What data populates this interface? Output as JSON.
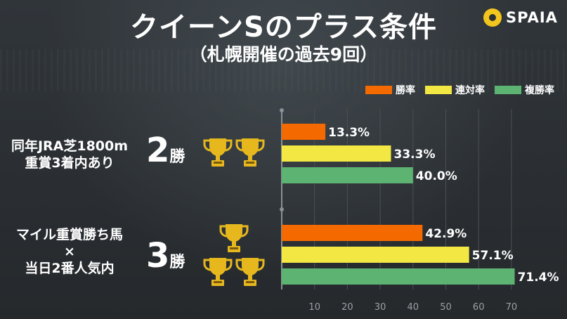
{
  "title": "クイーンSのプラス条件",
  "subtitle": "（札幌開催の過去9回）",
  "logo": {
    "text": "SPAIA"
  },
  "colors": {
    "win": "#f56a00",
    "top2": "#f3e743",
    "top3": "#5db372",
    "background": "#2b2f33"
  },
  "legend": [
    {
      "label": "勝率",
      "color": "#f56a00"
    },
    {
      "label": "連対率",
      "color": "#f3e743"
    },
    {
      "label": "複勝率",
      "color": "#5db372"
    }
  ],
  "groups": [
    {
      "condition_lines": [
        "同年JRA芝1800m",
        "重賞3着内あり"
      ],
      "wins_num": "2",
      "wins_unit": "勝",
      "trophies": 2
    },
    {
      "condition_lines": [
        "マイル重賞勝ち馬",
        "×",
        "当日2番人気内"
      ],
      "wins_num": "3",
      "wins_unit": "勝",
      "trophies": 3
    }
  ],
  "chart_data": {
    "type": "bar",
    "orientation": "horizontal",
    "groups": [
      "同年JRA芝1800m 重賞3着内あり",
      "マイル重賞勝ち馬 × 当日2番人気内"
    ],
    "series": [
      {
        "name": "勝率",
        "values": [
          13.3,
          42.9
        ],
        "labels": [
          "13.3%",
          "42.9%"
        ]
      },
      {
        "name": "連対率",
        "values": [
          33.3,
          57.1
        ],
        "labels": [
          "33.3%",
          "57.1%"
        ]
      },
      {
        "name": "複勝率",
        "values": [
          40.0,
          71.4
        ],
        "labels": [
          "40.0%",
          "71.4%"
        ]
      }
    ],
    "xlim": [
      0,
      70
    ],
    "xticks": [
      "10",
      "20",
      "30",
      "40",
      "50",
      "60",
      "70"
    ],
    "grid": true,
    "legend_position": "top-right"
  }
}
